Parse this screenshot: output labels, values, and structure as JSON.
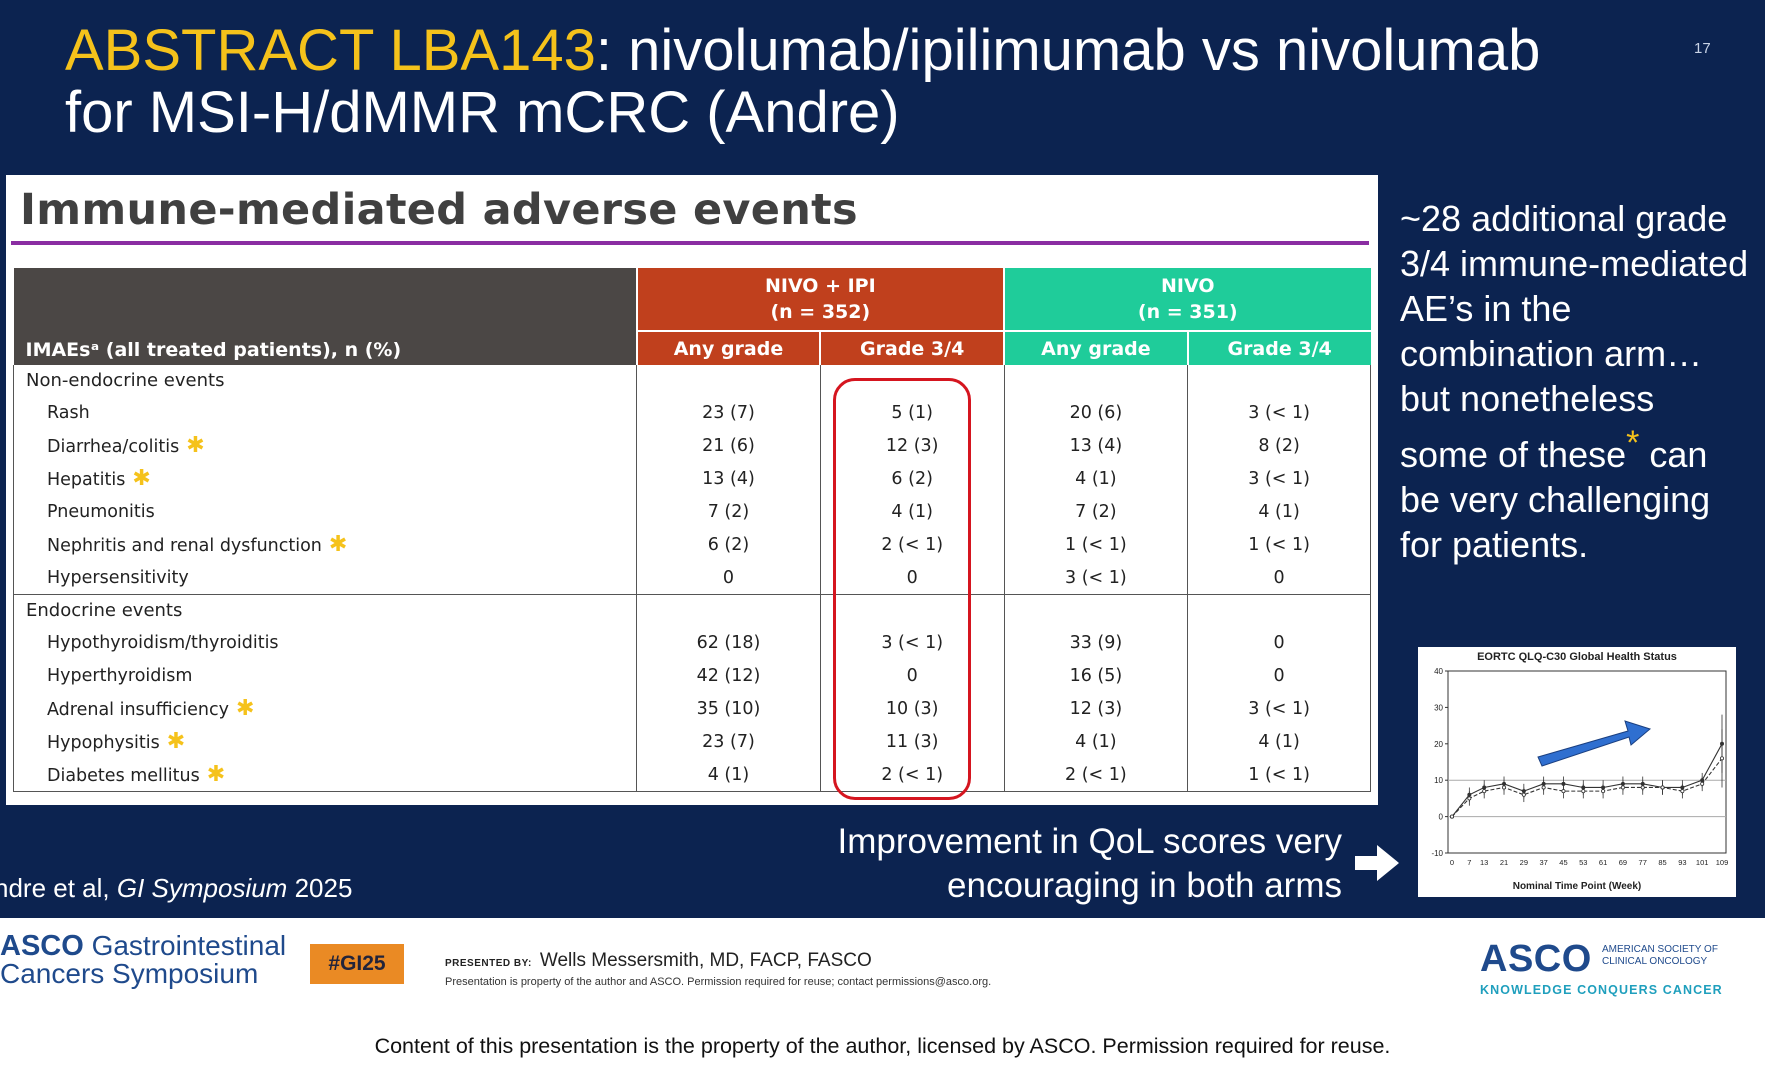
{
  "slide": {
    "number": "17",
    "title_highlight": "ABSTRACT LBA143",
    "title_rest": ": nivolumab/ipilimumab vs nivolumab",
    "title_line2": "for MSI-H/dMMR mCRC (Andre)"
  },
  "table": {
    "heading": "Immune-mediated adverse events",
    "row_header": "IMAEsᵃ (all treated patients), n (%)",
    "arm1": {
      "name": "NIVO + IPI",
      "n": "(n = 352)"
    },
    "arm2": {
      "name": "NIVO",
      "n": "(n = 351)"
    },
    "col_any": "Any grade",
    "col_g34": "Grade 3/4",
    "sections": [
      {
        "label": "Non-endocrine events",
        "rows": [
          {
            "label": "Rash",
            "star": false,
            "v": [
              "23 (7)",
              "5 (1)",
              "20 (6)",
              "3 (< 1)"
            ]
          },
          {
            "label": "Diarrhea/colitis",
            "star": true,
            "v": [
              "21 (6)",
              "12 (3)",
              "13 (4)",
              "8 (2)"
            ]
          },
          {
            "label": "Hepatitis",
            "star": true,
            "v": [
              "13 (4)",
              "6 (2)",
              "4 (1)",
              "3 (< 1)"
            ]
          },
          {
            "label": "Pneumonitis",
            "star": false,
            "v": [
              "7 (2)",
              "4 (1)",
              "7 (2)",
              "4 (1)"
            ]
          },
          {
            "label": "Nephritis and renal dysfunction",
            "star": true,
            "v": [
              "6 (2)",
              "2 (< 1)",
              "1 (< 1)",
              "1 (< 1)"
            ]
          },
          {
            "label": "Hypersensitivity",
            "star": false,
            "v": [
              "0",
              "0",
              "3 (< 1)",
              "0"
            ]
          }
        ]
      },
      {
        "label": "Endocrine events",
        "rows": [
          {
            "label": "Hypothyroidism/thyroiditis",
            "star": false,
            "v": [
              "62 (18)",
              "3 (< 1)",
              "33 (9)",
              "0"
            ]
          },
          {
            "label": "Hyperthyroidism",
            "star": false,
            "v": [
              "42 (12)",
              "0",
              "16 (5)",
              "0"
            ]
          },
          {
            "label": "Adrenal insufficiency",
            "star": true,
            "v": [
              "35 (10)",
              "10 (3)",
              "12 (3)",
              "3 (< 1)"
            ]
          },
          {
            "label": "Hypophysitis",
            "star": true,
            "v": [
              "23 (7)",
              "11 (3)",
              "4 (1)",
              "4 (1)"
            ]
          },
          {
            "label": "Diabetes mellitus",
            "star": true,
            "v": [
              "4 (1)",
              "2 (< 1)",
              "2 (< 1)",
              "1 (< 1)"
            ]
          }
        ]
      }
    ]
  },
  "side_note": {
    "before": "~28 additional grade 3/4 immune-mediated AE’s in the combination arm… but nonetheless some of these",
    "star": "*",
    "after": " can be very challenging for patients."
  },
  "qol_chart": {
    "title": "EORTC QLQ-C30 Global Health Status",
    "xlabel": "Nominal Time Point (Week)",
    "yticks": [
      "40",
      "30",
      "20",
      "10",
      "0",
      "-10"
    ],
    "xticks": [
      "0",
      "7",
      "13",
      "21",
      "29",
      "37",
      "45",
      "53",
      "61",
      "69",
      "77",
      "85",
      "93",
      "101",
      "109"
    ]
  },
  "chart_data": {
    "type": "line",
    "title": "EORTC QLQ-C30 Global Health Status",
    "xlabel": "Nominal Time Point (Week)",
    "ylabel": "",
    "x": [
      0,
      7,
      13,
      21,
      29,
      37,
      45,
      53,
      61,
      69,
      77,
      85,
      93,
      101,
      109
    ],
    "ylim": [
      -10,
      40
    ],
    "series": [
      {
        "values": [
          0,
          6,
          8,
          9,
          7,
          9,
          9,
          8,
          8,
          9,
          9,
          8,
          8,
          10,
          20
        ]
      },
      {
        "values": [
          0,
          5,
          7,
          8,
          6,
          8,
          7,
          7,
          7,
          8,
          8,
          8,
          7,
          9,
          16
        ]
      }
    ],
    "grid": false
  },
  "qol_note": {
    "line1": "Improvement in QoL scores very",
    "line2": "encouraging in both arms"
  },
  "citation": {
    "authors": "ndre et al, ",
    "journal": "GI Symposium",
    "year": " 2025"
  },
  "footer": {
    "asco_gi_bold": "ASCO",
    "asco_gi_line1": " Gastrointestinal",
    "asco_gi_line2": "Cancers Symposium",
    "hashtag": "#GI25",
    "presented_by_label": "PRESENTED BY:",
    "presenter": "Wells Messersmith, MD, FACP, FASCO",
    "property_note": "Presentation is property of the author and ASCO. Permission required for reuse; contact permissions@asco.org.",
    "asco_logo": "ASCO",
    "society_line1": "AMERICAN SOCIETY OF",
    "society_line2": "CLINICAL ONCOLOGY",
    "tagline": "KNOWLEDGE CONQUERS CANCER"
  },
  "bottom_note": "Content of this presentation is the property of the author, licensed by ASCO. Permission required for reuse.",
  "colors": {
    "background": "#0c2350",
    "accent_yellow": "#f5c21b",
    "nivo_ipi": "#c0401d",
    "nivo": "#1fcc9a",
    "highlight_red": "#d5151f",
    "arrow_blue": "#2f6fd0"
  }
}
